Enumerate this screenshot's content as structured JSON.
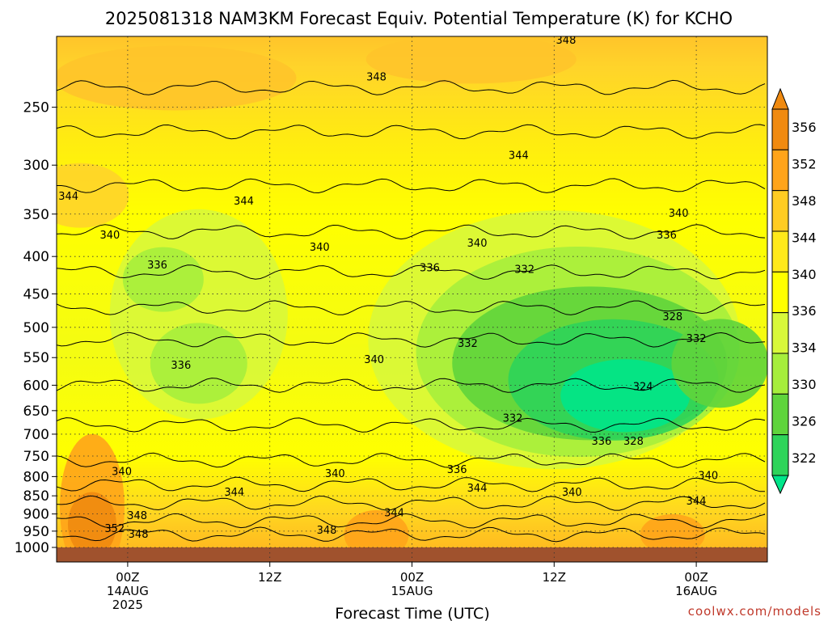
{
  "chart_data": {
    "type": "heatmap",
    "title": "2025081318 NAM3KM Forecast Equiv. Potential Temperature (K) for KCHO",
    "xlabel": "Forecast Time (UTC)",
    "ylabel": "",
    "y_scale": "log",
    "ylim": [
      1000,
      200
    ],
    "y_ticks": [
      250,
      300,
      350,
      400,
      450,
      500,
      550,
      600,
      650,
      700,
      750,
      800,
      850,
      900,
      950,
      1000
    ],
    "y_tick_labels": [
      "250",
      "300",
      "350",
      "400",
      "450",
      "500",
      "550",
      "600",
      "650",
      "700",
      "750",
      "800",
      "850",
      "900",
      "950",
      "1000"
    ],
    "x_ticks": [
      {
        "hour": 6,
        "lines": [
          "00Z",
          "14AUG",
          "2025"
        ]
      },
      {
        "hour": 18,
        "lines": [
          "12Z"
        ]
      },
      {
        "hour": 30,
        "lines": [
          "00Z",
          "15AUG"
        ]
      },
      {
        "hour": 42,
        "lines": [
          "12Z"
        ]
      },
      {
        "hour": 54,
        "lines": [
          "00Z",
          "16AUG"
        ]
      }
    ],
    "xlim": [
      0,
      60
    ],
    "grid": true,
    "colorbar": {
      "levels": [
        322,
        326,
        330,
        334,
        336,
        340,
        344,
        348,
        352,
        356
      ],
      "labels": [
        "322",
        "326",
        "330",
        "334",
        "336",
        "340",
        "344",
        "348",
        "352",
        "356"
      ],
      "colors": [
        "#00e68a",
        "#2ed45a",
        "#5fd43c",
        "#a6ee3c",
        "#d8f83a",
        "#ffff00",
        "#ffe91a",
        "#ffcc22",
        "#ffa41a",
        "#f08a10"
      ],
      "extend": "both"
    },
    "contour_labels": [
      {
        "text": "348",
        "hour": 43.0,
        "p": 203
      },
      {
        "text": "348",
        "hour": 27.0,
        "p": 228
      },
      {
        "text": "344",
        "hour": 39.0,
        "p": 292
      },
      {
        "text": "344",
        "hour": 1.0,
        "p": 332
      },
      {
        "text": "344",
        "hour": 15.8,
        "p": 337
      },
      {
        "text": "340",
        "hour": 52.5,
        "p": 350
      },
      {
        "text": "340",
        "hour": 4.5,
        "p": 375
      },
      {
        "text": "336",
        "hour": 51.5,
        "p": 375
      },
      {
        "text": "340",
        "hour": 22.2,
        "p": 390
      },
      {
        "text": "340",
        "hour": 35.5,
        "p": 385
      },
      {
        "text": "336",
        "hour": 8.5,
        "p": 412
      },
      {
        "text": "336",
        "hour": 31.5,
        "p": 416
      },
      {
        "text": "332",
        "hour": 39.5,
        "p": 418
      },
      {
        "text": "328",
        "hour": 52.0,
        "p": 485
      },
      {
        "text": "332",
        "hour": 54.0,
        "p": 520
      },
      {
        "text": "332",
        "hour": 34.7,
        "p": 528
      },
      {
        "text": "336",
        "hour": 10.5,
        "p": 565
      },
      {
        "text": "340",
        "hour": 26.8,
        "p": 555
      },
      {
        "text": "324",
        "hour": 49.5,
        "p": 605
      },
      {
        "text": "332",
        "hour": 38.5,
        "p": 668
      },
      {
        "text": "336",
        "hour": 46.0,
        "p": 718
      },
      {
        "text": "328",
        "hour": 48.7,
        "p": 718
      },
      {
        "text": "336",
        "hour": 33.8,
        "p": 785
      },
      {
        "text": "340",
        "hour": 5.5,
        "p": 790
      },
      {
        "text": "340",
        "hour": 23.5,
        "p": 795
      },
      {
        "text": "340",
        "hour": 55.0,
        "p": 800
      },
      {
        "text": "344",
        "hour": 15.0,
        "p": 843
      },
      {
        "text": "344",
        "hour": 35.5,
        "p": 832
      },
      {
        "text": "340",
        "hour": 43.5,
        "p": 843
      },
      {
        "text": "344",
        "hour": 54.0,
        "p": 867
      },
      {
        "text": "344",
        "hour": 28.5,
        "p": 900
      },
      {
        "text": "348",
        "hour": 6.8,
        "p": 908
      },
      {
        "text": "352",
        "hour": 4.9,
        "p": 945
      },
      {
        "text": "348",
        "hour": 6.9,
        "p": 962
      },
      {
        "text": "348",
        "hour": 22.8,
        "p": 950
      }
    ]
  },
  "credit": "coolwx.com/models"
}
